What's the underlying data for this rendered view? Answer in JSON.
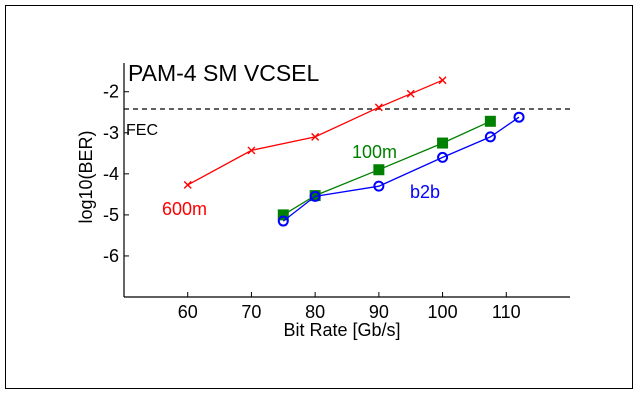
{
  "chart_data": {
    "type": "line",
    "title": "PAM-4 SM VCSEL",
    "xlabel": "Bit Rate [Gb/s]",
    "ylabel": "log10(BER)",
    "xlim": [
      50,
      120
    ],
    "ylim": [
      -7,
      -1.3
    ],
    "xticks": [
      60,
      70,
      80,
      90,
      100,
      110
    ],
    "xtick_labels": [
      "60",
      "70",
      "80",
      "90",
      "100",
      "110"
    ],
    "yticks": [
      -2,
      -3,
      -4,
      -5,
      -6
    ],
    "ytick_labels": [
      "-2",
      "-3",
      "-4",
      "-5",
      "-6"
    ],
    "grid": false,
    "threshold": {
      "label": "FEC",
      "y": -2.42
    },
    "series": [
      {
        "name": "600m",
        "color": "#ff0000",
        "marker": "x-icon",
        "x": [
          60,
          70,
          80,
          90,
          95,
          100
        ],
        "y": [
          -4.27,
          -3.43,
          -3.1,
          -2.38,
          -2.05,
          -1.72
        ]
      },
      {
        "name": "100m",
        "color": "#008000",
        "marker": "square-icon",
        "x": [
          75,
          80,
          90,
          100,
          107.5
        ],
        "y": [
          -5.0,
          -4.53,
          -3.9,
          -3.25,
          -2.72
        ]
      },
      {
        "name": "b2b",
        "color": "#0000ff",
        "marker": "circle-icon",
        "x": [
          75,
          80,
          90,
          100,
          107.5,
          112
        ],
        "y": [
          -5.15,
          -4.55,
          -4.3,
          -3.6,
          -3.1,
          -2.62
        ]
      }
    ]
  }
}
